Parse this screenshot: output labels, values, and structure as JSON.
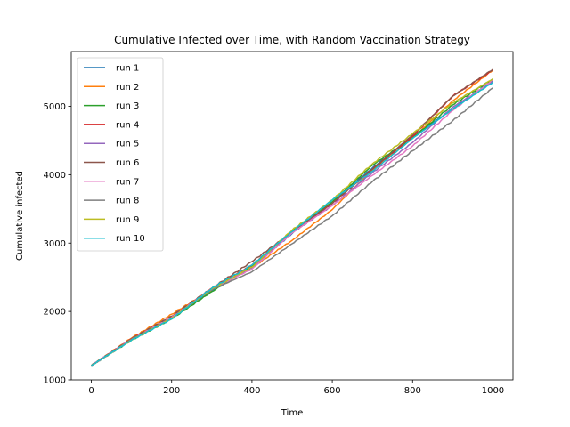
{
  "chart_data": {
    "type": "line",
    "title": "Cumulative Infected over Time, with Random Vaccination Strategy",
    "xlabel": "Time",
    "ylabel": "Cumulative infected",
    "xlim": [
      -50,
      1050
    ],
    "ylim": [
      1000,
      5800
    ],
    "xticks": [
      0,
      200,
      400,
      600,
      800,
      1000
    ],
    "yticks": [
      1000,
      2000,
      3000,
      4000,
      5000
    ],
    "grid": false,
    "legend_position": "upper-left",
    "x": [
      0,
      100,
      200,
      300,
      400,
      500,
      600,
      700,
      800,
      900,
      1000
    ],
    "series": [
      {
        "name": "run 1",
        "color": "#1f77b4",
        "values": [
          1210,
          1590,
          1900,
          2310,
          2650,
          3140,
          3600,
          4100,
          4560,
          4960,
          5380
        ]
      },
      {
        "name": "run 2",
        "color": "#ff7f0e",
        "values": [
          1210,
          1610,
          1960,
          2320,
          2640,
          3040,
          3490,
          4070,
          4530,
          5080,
          5530
        ]
      },
      {
        "name": "run 3",
        "color": "#2ca02c",
        "values": [
          1210,
          1580,
          1890,
          2290,
          2660,
          3180,
          3600,
          4140,
          4540,
          5020,
          5400
        ]
      },
      {
        "name": "run 4",
        "color": "#d62728",
        "values": [
          1210,
          1600,
          1920,
          2340,
          2680,
          3160,
          3580,
          4080,
          4560,
          5150,
          5530
        ]
      },
      {
        "name": "run 5",
        "color": "#9467bd",
        "values": [
          1210,
          1590,
          1910,
          2330,
          2640,
          3150,
          3550,
          4030,
          4470,
          4990,
          5360
        ]
      },
      {
        "name": "run 6",
        "color": "#8c564b",
        "values": [
          1210,
          1600,
          1930,
          2340,
          2730,
          3160,
          3580,
          4080,
          4580,
          5150,
          5540
        ]
      },
      {
        "name": "run 7",
        "color": "#e377c2",
        "values": [
          1210,
          1590,
          1910,
          2330,
          2620,
          3150,
          3550,
          3990,
          4420,
          4940,
          5390
        ]
      },
      {
        "name": "run 8",
        "color": "#7f7f7f",
        "values": [
          1210,
          1590,
          1900,
          2320,
          2580,
          2990,
          3400,
          3900,
          4350,
          4790,
          5270
        ]
      },
      {
        "name": "run 9",
        "color": "#bcbd22",
        "values": [
          1210,
          1580,
          1900,
          2330,
          2650,
          3190,
          3630,
          4160,
          4600,
          5050,
          5400
        ]
      },
      {
        "name": "run 10",
        "color": "#17becf",
        "values": [
          1210,
          1580,
          1890,
          2340,
          2680,
          3170,
          3630,
          4050,
          4530,
          4960,
          5350
        ]
      }
    ]
  }
}
